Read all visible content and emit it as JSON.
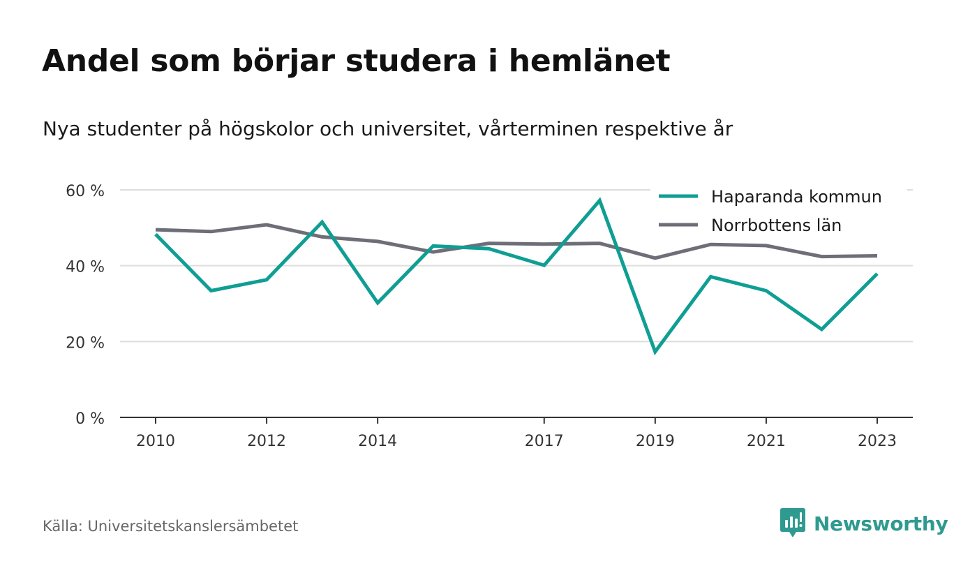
{
  "header": {
    "title": "Andel som börjar studera i hemlänet",
    "subtitle": "Nya studenter på högskolor och universitet, vårterminen respektive år"
  },
  "footer": {
    "source": "Källa: Universitetskanslersämbetet",
    "brand": "Newsworthy"
  },
  "colors": {
    "haparanda": "#0f9e94",
    "norrbotten": "#6e6e78",
    "grid": "#dddddd",
    "axis": "#333333",
    "brand": "#2f9a90"
  },
  "icons": {
    "brand_logo": "newsworthy-bar-chart-speech-bubble-icon"
  },
  "chart_data": {
    "type": "line",
    "title": "Andel som börjar studera i hemlänet",
    "subtitle": "Nya studenter på högskolor och universitet, vårterminen respektive år",
    "xlabel": "",
    "ylabel": "",
    "x": [
      2010,
      2011,
      2012,
      2013,
      2014,
      2015,
      2016,
      2017,
      2018,
      2019,
      2020,
      2021,
      2022,
      2023
    ],
    "x_tick_labels": [
      "2010",
      "2012",
      "2014",
      "2017",
      "2019",
      "2021",
      "2023"
    ],
    "x_tick_values": [
      2010,
      2012,
      2014,
      2017,
      2019,
      2021,
      2023
    ],
    "y_ticks": [
      0,
      20,
      40,
      60
    ],
    "y_tick_labels": [
      "0 %",
      "20 %",
      "40 %",
      "60 %"
    ],
    "ylim": [
      0,
      60
    ],
    "grid": true,
    "legend_position": "top-right",
    "series": [
      {
        "name": "Haparanda kommun",
        "color": "#0f9e94",
        "values": [
          48.3,
          33.4,
          36.3,
          51.5,
          30.2,
          45.2,
          44.5,
          40.1,
          57.2,
          17.3,
          37.1,
          33.4,
          23.2,
          37.9
        ]
      },
      {
        "name": "Norrbottens län",
        "color": "#6e6e78",
        "values": [
          49.5,
          49.0,
          50.8,
          47.6,
          46.4,
          43.6,
          45.9,
          45.7,
          45.9,
          42.0,
          45.6,
          45.3,
          42.4,
          42.6
        ]
      }
    ]
  }
}
